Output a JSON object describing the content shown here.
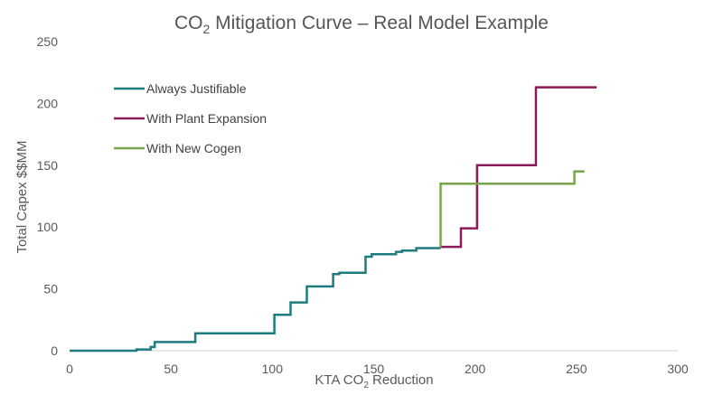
{
  "chart_data": {
    "type": "line",
    "title": {
      "main": "CO",
      "sub": "2",
      "rest": " Mitigation Curve – Real Model Example"
    },
    "xlabel": {
      "main": "KTA CO",
      "sub": "2",
      "rest": " Reduction"
    },
    "ylabel": "Total Capex $$MM",
    "xlim": [
      0,
      300
    ],
    "ylim": [
      0,
      250
    ],
    "x_ticks": [
      0,
      50,
      100,
      150,
      200,
      250,
      300
    ],
    "y_ticks": [
      0,
      50,
      100,
      150,
      200,
      250
    ],
    "grid": false,
    "legend_position": "top-left",
    "step": true,
    "series": [
      {
        "name": "Always Justifiable",
        "color": "#1e7b80",
        "points": [
          [
            0,
            0
          ],
          [
            33,
            0
          ],
          [
            33,
            1
          ],
          [
            40,
            1
          ],
          [
            40,
            3
          ],
          [
            42,
            3
          ],
          [
            42,
            7
          ],
          [
            62,
            7
          ],
          [
            62,
            14
          ],
          [
            101,
            14
          ],
          [
            101,
            29
          ],
          [
            109,
            29
          ],
          [
            109,
            39
          ],
          [
            117,
            39
          ],
          [
            117,
            52
          ],
          [
            130,
            52
          ],
          [
            130,
            62
          ],
          [
            133,
            62
          ],
          [
            133,
            63
          ],
          [
            146,
            63
          ],
          [
            146,
            76
          ],
          [
            149,
            76
          ],
          [
            149,
            78
          ],
          [
            161,
            78
          ],
          [
            161,
            80
          ],
          [
            164,
            80
          ],
          [
            164,
            81
          ],
          [
            171,
            81
          ],
          [
            171,
            83
          ],
          [
            183,
            83
          ]
        ]
      },
      {
        "name": "With Plant Expansion",
        "color": "#8a1b57",
        "points": [
          [
            183,
            84
          ],
          [
            193,
            84
          ],
          [
            193,
            99
          ],
          [
            201,
            99
          ],
          [
            201,
            150
          ],
          [
            230,
            150
          ],
          [
            230,
            213
          ],
          [
            260,
            213
          ]
        ]
      },
      {
        "name": "With New Cogen",
        "color": "#78a44b",
        "points": [
          [
            183,
            84
          ],
          [
            183,
            135
          ],
          [
            249,
            135
          ],
          [
            249,
            145
          ],
          [
            254,
            145
          ]
        ]
      }
    ]
  }
}
